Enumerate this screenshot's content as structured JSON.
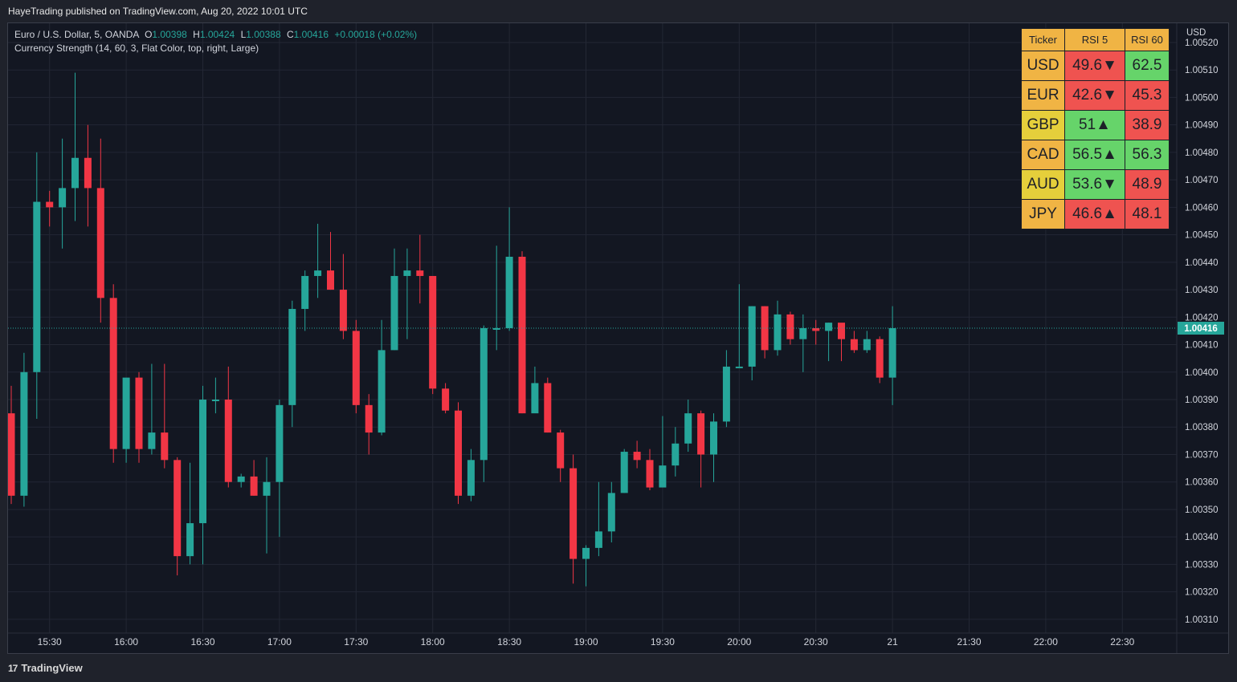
{
  "header": {
    "published": "HayeTrading published on TradingView.com, Aug 20, 2022 10:01 UTC"
  },
  "legend": {
    "symbol": "Euro / U.S. Dollar, 5, OANDA",
    "o_label": "O",
    "o_value": "1.00398",
    "h_label": "H",
    "h_value": "1.00424",
    "l_label": "L",
    "l_value": "1.00388",
    "c_label": "C",
    "c_value": "1.00416",
    "change": "+0.00018 (+0.02%)",
    "indicator": "Currency Strength (14, 60, 3, Flat Color, top, right, Large)"
  },
  "strength_table": {
    "headers": [
      "Ticker",
      "RSI 5",
      "RSI 60"
    ],
    "rows": [
      {
        "ticker": "USD",
        "rsi5": "49.6▼",
        "rsi60": "62.5",
        "c1": "#f0b444",
        "c2": "#ef5350",
        "c3": "#66d46a"
      },
      {
        "ticker": "EUR",
        "rsi5": "42.6▼",
        "rsi60": "45.3",
        "c1": "#f0b444",
        "c2": "#ef5350",
        "c3": "#ef5350"
      },
      {
        "ticker": "GBP",
        "rsi5": "51▲",
        "rsi60": "38.9",
        "c1": "#e5cf3b",
        "c2": "#66d46a",
        "c3": "#ef5350"
      },
      {
        "ticker": "CAD",
        "rsi5": "56.5▲",
        "rsi60": "56.3",
        "c1": "#f0b444",
        "c2": "#66d46a",
        "c3": "#66d46a"
      },
      {
        "ticker": "AUD",
        "rsi5": "53.6▼",
        "rsi60": "48.9",
        "c1": "#e5cf3b",
        "c2": "#66d46a",
        "c3": "#ef5350"
      },
      {
        "ticker": "JPY",
        "rsi5": "46.6▲",
        "rsi60": "48.1",
        "c1": "#f0b444",
        "c2": "#ef5350",
        "c3": "#ef5350"
      }
    ]
  },
  "footer": {
    "brand": "TradingView",
    "brand_mark": "17"
  },
  "colors": {
    "up": "#26a69a",
    "down": "#f23645",
    "background": "#131722",
    "grid": "#232734"
  },
  "chart_data": {
    "type": "candlestick",
    "title": "Euro / U.S. Dollar, 5, OANDA",
    "currency_label": "USD",
    "last_price": "1.00416",
    "ylim": [
      1.00305,
      1.00527
    ],
    "y_ticks": [
      "1.00520",
      "1.00510",
      "1.00500",
      "1.00490",
      "1.00480",
      "1.00470",
      "1.00460",
      "1.00450",
      "1.00440",
      "1.00430",
      "1.00420",
      "1.00410",
      "1.00400",
      "1.00390",
      "1.00380",
      "1.00370",
      "1.00360",
      "1.00350",
      "1.00340",
      "1.00330",
      "1.00320",
      "1.00310"
    ],
    "x_ticks": [
      "15:30",
      "16:00",
      "16:30",
      "17:00",
      "17:30",
      "18:00",
      "18:30",
      "19:00",
      "19:30",
      "20:00",
      "20:30",
      "21",
      "21:30",
      "22:00",
      "22:30"
    ],
    "x_tick_index": [
      3,
      9,
      15,
      21,
      27,
      33,
      39,
      45,
      51,
      57,
      63,
      69,
      75,
      81,
      87
    ],
    "candles": [
      {
        "o": 1.00385,
        "h": 1.00395,
        "l": 1.00352,
        "c": 1.00355
      },
      {
        "o": 1.00355,
        "h": 1.00407,
        "l": 1.00351,
        "c": 1.004
      },
      {
        "o": 1.004,
        "h": 1.0048,
        "l": 1.00383,
        "c": 1.00462
      },
      {
        "o": 1.00462,
        "h": 1.00466,
        "l": 1.00453,
        "c": 1.0046
      },
      {
        "o": 1.0046,
        "h": 1.00485,
        "l": 1.00445,
        "c": 1.00467
      },
      {
        "o": 1.00467,
        "h": 1.00509,
        "l": 1.00455,
        "c": 1.00478
      },
      {
        "o": 1.00478,
        "h": 1.0049,
        "l": 1.00453,
        "c": 1.00467
      },
      {
        "o": 1.00467,
        "h": 1.00485,
        "l": 1.00418,
        "c": 1.00427
      },
      {
        "o": 1.00427,
        "h": 1.00432,
        "l": 1.00367,
        "c": 1.00372
      },
      {
        "o": 1.00372,
        "h": 1.00397,
        "l": 1.00367,
        "c": 1.00398
      },
      {
        "o": 1.00398,
        "h": 1.004,
        "l": 1.00367,
        "c": 1.00372
      },
      {
        "o": 1.00372,
        "h": 1.00403,
        "l": 1.0037,
        "c": 1.00378
      },
      {
        "o": 1.00378,
        "h": 1.00403,
        "l": 1.00365,
        "c": 1.00368
      },
      {
        "o": 1.00368,
        "h": 1.00369,
        "l": 1.00326,
        "c": 1.00333
      },
      {
        "o": 1.00333,
        "h": 1.00367,
        "l": 1.0033,
        "c": 1.00345
      },
      {
        "o": 1.00345,
        "h": 1.00395,
        "l": 1.0033,
        "c": 1.0039
      },
      {
        "o": 1.0039,
        "h": 1.00398,
        "l": 1.00385,
        "c": 1.0039
      },
      {
        "o": 1.0039,
        "h": 1.00402,
        "l": 1.00358,
        "c": 1.0036
      },
      {
        "o": 1.0036,
        "h": 1.00363,
        "l": 1.00358,
        "c": 1.00362
      },
      {
        "o": 1.00362,
        "h": 1.00368,
        "l": 1.00355,
        "c": 1.00355
      },
      {
        "o": 1.00355,
        "h": 1.00369,
        "l": 1.00334,
        "c": 1.0036
      },
      {
        "o": 1.0036,
        "h": 1.0039,
        "l": 1.0034,
        "c": 1.00388
      },
      {
        "o": 1.00388,
        "h": 1.00426,
        "l": 1.0038,
        "c": 1.00423
      },
      {
        "o": 1.00423,
        "h": 1.00437,
        "l": 1.00415,
        "c": 1.00435
      },
      {
        "o": 1.00435,
        "h": 1.00454,
        "l": 1.00427,
        "c": 1.00437
      },
      {
        "o": 1.00437,
        "h": 1.00451,
        "l": 1.0043,
        "c": 1.0043
      },
      {
        "o": 1.0043,
        "h": 1.00443,
        "l": 1.00412,
        "c": 1.00415
      },
      {
        "o": 1.00415,
        "h": 1.00419,
        "l": 1.00385,
        "c": 1.00388
      },
      {
        "o": 1.00388,
        "h": 1.00392,
        "l": 1.0037,
        "c": 1.00378
      },
      {
        "o": 1.00378,
        "h": 1.00419,
        "l": 1.00377,
        "c": 1.00408
      },
      {
        "o": 1.00408,
        "h": 1.00445,
        "l": 1.00408,
        "c": 1.00435
      },
      {
        "o": 1.00435,
        "h": 1.00445,
        "l": 1.00412,
        "c": 1.00437
      },
      {
        "o": 1.00437,
        "h": 1.0045,
        "l": 1.00425,
        "c": 1.00435
      },
      {
        "o": 1.00435,
        "h": 1.00434,
        "l": 1.00392,
        "c": 1.00394
      },
      {
        "o": 1.00394,
        "h": 1.00396,
        "l": 1.00385,
        "c": 1.00386
      },
      {
        "o": 1.00386,
        "h": 1.00389,
        "l": 1.00352,
        "c": 1.00355
      },
      {
        "o": 1.00355,
        "h": 1.00372,
        "l": 1.00353,
        "c": 1.00368
      },
      {
        "o": 1.00368,
        "h": 1.00417,
        "l": 1.0036,
        "c": 1.00416
      },
      {
        "o": 1.00416,
        "h": 1.00446,
        "l": 1.00408,
        "c": 1.00416
      },
      {
        "o": 1.00416,
        "h": 1.0046,
        "l": 1.00415,
        "c": 1.00442
      },
      {
        "o": 1.00442,
        "h": 1.00444,
        "l": 1.00385,
        "c": 1.00385
      },
      {
        "o": 1.00385,
        "h": 1.00402,
        "l": 1.00386,
        "c": 1.00396
      },
      {
        "o": 1.00396,
        "h": 1.00398,
        "l": 1.00378,
        "c": 1.00378
      },
      {
        "o": 1.00378,
        "h": 1.00379,
        "l": 1.0036,
        "c": 1.00365
      },
      {
        "o": 1.00365,
        "h": 1.0037,
        "l": 1.00323,
        "c": 1.00332
      },
      {
        "o": 1.00332,
        "h": 1.00337,
        "l": 1.00322,
        "c": 1.00336
      },
      {
        "o": 1.00336,
        "h": 1.0036,
        "l": 1.00333,
        "c": 1.00342
      },
      {
        "o": 1.00342,
        "h": 1.0036,
        "l": 1.00338,
        "c": 1.00356
      },
      {
        "o": 1.00356,
        "h": 1.00372,
        "l": 1.00356,
        "c": 1.00371
      },
      {
        "o": 1.00371,
        "h": 1.00375,
        "l": 1.00365,
        "c": 1.00368
      },
      {
        "o": 1.00368,
        "h": 1.00372,
        "l": 1.00357,
        "c": 1.00358
      },
      {
        "o": 1.00358,
        "h": 1.00384,
        "l": 1.00358,
        "c": 1.00366
      },
      {
        "o": 1.00366,
        "h": 1.0038,
        "l": 1.00362,
        "c": 1.00374
      },
      {
        "o": 1.00374,
        "h": 1.0039,
        "l": 1.00371,
        "c": 1.00385
      },
      {
        "o": 1.00385,
        "h": 1.00386,
        "l": 1.00358,
        "c": 1.0037
      },
      {
        "o": 1.0037,
        "h": 1.00385,
        "l": 1.0036,
        "c": 1.00382
      },
      {
        "o": 1.00382,
        "h": 1.00408,
        "l": 1.0038,
        "c": 1.00402
      },
      {
        "o": 1.00402,
        "h": 1.00432,
        "l": 1.00402,
        "c": 1.00402
      },
      {
        "o": 1.00402,
        "h": 1.00424,
        "l": 1.00397,
        "c": 1.00424
      },
      {
        "o": 1.00424,
        "h": 1.00424,
        "l": 1.00405,
        "c": 1.00408
      },
      {
        "o": 1.00408,
        "h": 1.00426,
        "l": 1.00406,
        "c": 1.00421
      },
      {
        "o": 1.00421,
        "h": 1.00422,
        "l": 1.0041,
        "c": 1.00412
      },
      {
        "o": 1.00412,
        "h": 1.00421,
        "l": 1.004,
        "c": 1.00416
      },
      {
        "o": 1.00416,
        "h": 1.00419,
        "l": 1.0041,
        "c": 1.00415
      },
      {
        "o": 1.00415,
        "h": 1.00418,
        "l": 1.00404,
        "c": 1.00418
      },
      {
        "o": 1.00418,
        "h": 1.00417,
        "l": 1.00404,
        "c": 1.00412
      },
      {
        "o": 1.00412,
        "h": 1.00415,
        "l": 1.00407,
        "c": 1.00408
      },
      {
        "o": 1.00408,
        "h": 1.00415,
        "l": 1.00407,
        "c": 1.00412
      },
      {
        "o": 1.00412,
        "h": 1.00413,
        "l": 1.00396,
        "c": 1.00398
      },
      {
        "o": 1.00398,
        "h": 1.00424,
        "l": 1.00388,
        "c": 1.00416
      }
    ]
  }
}
